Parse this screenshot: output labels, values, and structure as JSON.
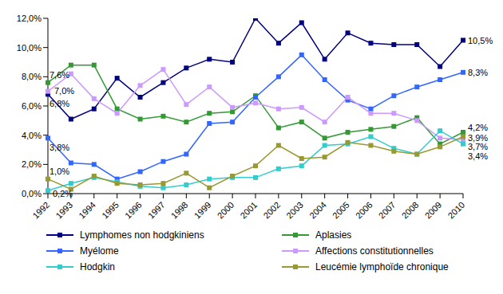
{
  "chart_data": {
    "type": "line",
    "categories": [
      "1992",
      "1993",
      "1994",
      "1995",
      "1996",
      "1997",
      "1998",
      "1999",
      "2000",
      "2001",
      "2002",
      "2003",
      "2004",
      "2005",
      "2006",
      "2007",
      "2008",
      "2009",
      "2010"
    ],
    "ylim": [
      0,
      12
    ],
    "yticks": [
      {
        "value": 0,
        "label": "0,0%"
      },
      {
        "value": 2,
        "label": "2,0%"
      },
      {
        "value": 4,
        "label": "4,0%"
      },
      {
        "value": 6,
        "label": "6,0%"
      },
      {
        "value": 8,
        "label": "8,0%"
      },
      {
        "value": 10,
        "label": "10,0%"
      },
      {
        "value": 12,
        "label": "12,0%"
      }
    ],
    "grid": false,
    "legend": "bottom",
    "data_labels": true,
    "marker": "square",
    "series": [
      {
        "name": "Lymphomes non hodgkiniens",
        "color": "#000080",
        "values": [
          6.8,
          5.1,
          5.8,
          7.9,
          6.6,
          7.6,
          8.6,
          9.2,
          9.0,
          12.0,
          10.3,
          11.7,
          9.2,
          11.0,
          10.3,
          10.2,
          10.2,
          8.7,
          10.5
        ],
        "value_labels": [
          "6,8%",
          null,
          null,
          null,
          null,
          null,
          null,
          null,
          null,
          null,
          null,
          null,
          null,
          null,
          null,
          null,
          null,
          null,
          "10,5%"
        ]
      },
      {
        "name": "Aplasies",
        "color": "#339933",
        "values": [
          7.6,
          8.8,
          8.8,
          5.8,
          5.1,
          5.3,
          4.9,
          5.5,
          5.6,
          6.7,
          4.5,
          4.9,
          3.8,
          4.2,
          4.4,
          4.6,
          5.2,
          3.4,
          4.2
        ],
        "value_labels": [
          "7,6%",
          null,
          null,
          null,
          null,
          null,
          null,
          null,
          null,
          null,
          null,
          null,
          null,
          null,
          null,
          null,
          null,
          null,
          "4,2%"
        ]
      },
      {
        "name": "Myélome",
        "color": "#3366FF",
        "values": [
          3.8,
          2.1,
          2.0,
          1.0,
          1.5,
          2.2,
          2.7,
          4.8,
          4.9,
          6.6,
          8.0,
          9.5,
          7.8,
          6.4,
          5.8,
          6.7,
          7.3,
          7.8,
          8.3
        ],
        "value_labels": [
          "3,8%",
          null,
          null,
          null,
          null,
          null,
          null,
          null,
          null,
          null,
          null,
          null,
          null,
          null,
          null,
          null,
          null,
          null,
          "8,3%"
        ]
      },
      {
        "name": "Affections constitutionnelles",
        "color": "#CC99FF",
        "values": [
          7.0,
          8.2,
          6.5,
          5.5,
          7.4,
          8.5,
          6.1,
          7.3,
          5.9,
          6.2,
          5.8,
          5.9,
          4.9,
          6.6,
          5.5,
          5.5,
          5.0,
          3.8,
          3.7
        ],
        "value_labels": [
          "7,0%",
          null,
          null,
          null,
          null,
          null,
          null,
          null,
          null,
          null,
          null,
          null,
          null,
          null,
          null,
          null,
          null,
          null,
          "3,7%"
        ]
      },
      {
        "name": "Hodgkin",
        "color": "#33CCCC",
        "values": [
          0.2,
          0.7,
          1.1,
          0.8,
          0.5,
          0.4,
          0.6,
          1.0,
          1.1,
          1.1,
          1.7,
          1.9,
          3.3,
          3.4,
          3.9,
          3.1,
          2.7,
          4.3,
          3.4
        ],
        "value_labels": [
          "0,2%",
          null,
          null,
          null,
          null,
          null,
          null,
          null,
          null,
          null,
          null,
          null,
          null,
          null,
          null,
          null,
          null,
          null,
          "3,4%"
        ]
      },
      {
        "name": "Leucémie lymphoïde chronique",
        "color": "#999933",
        "values": [
          1.0,
          0.3,
          1.2,
          0.7,
          0.6,
          0.7,
          1.4,
          0.4,
          1.2,
          1.9,
          3.3,
          2.4,
          2.5,
          3.5,
          3.3,
          2.9,
          2.7,
          3.2,
          3.9
        ],
        "value_labels": [
          "1,0%",
          null,
          null,
          null,
          null,
          null,
          null,
          null,
          null,
          null,
          null,
          null,
          null,
          null,
          null,
          null,
          null,
          null,
          "3,9%"
        ]
      }
    ]
  }
}
